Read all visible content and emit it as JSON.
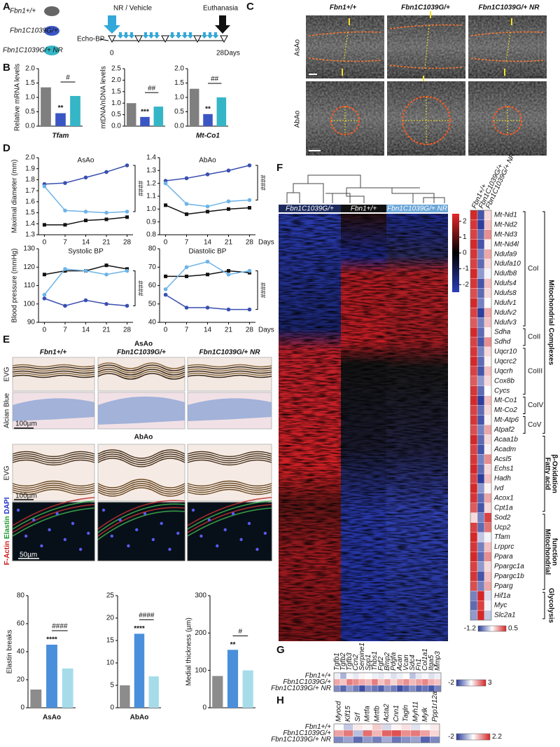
{
  "panel_labels": [
    "A",
    "B",
    "C",
    "D",
    "E",
    "F",
    "G",
    "H"
  ],
  "A": {
    "groups": [
      "Fbn1+/+",
      "Fbn1C1039G/+",
      "Fbn1C1039G/+ NR"
    ],
    "measure": "Echo-BP",
    "treatment": "NR / Vehicle",
    "endpoint": "Euthanasia",
    "start": "0",
    "end": "28Days"
  },
  "C": {
    "columns": [
      "Fbn1+/+",
      "Fbn1C1039G/+",
      "Fbn1C1039G/+ NR"
    ],
    "rows": [
      "AsAo",
      "AbAo"
    ]
  },
  "E": {
    "section_1": "AsAo",
    "columns": [
      "Fbn1+/+",
      "Fbn1C1039G/+",
      "Fbn1C1039G/+ NR"
    ],
    "rows_1": [
      "EVG",
      "Alcian Blue"
    ],
    "scale_1": "100µm",
    "section_2": "AbAo",
    "rows_2": [
      "EVG"
    ],
    "scale_2": "100µm",
    "stains": [
      "F-Actin",
      "Elastin",
      "DAPI"
    ],
    "scale_3": "50µm"
  },
  "F": {
    "subgroups": [
      "CoI",
      "CoII",
      "CoIII",
      "CoIV",
      "CoV"
    ],
    "categories": [
      [
        "Mitochondrial Complexes"
      ],
      [
        "Fatty acid",
        "β-Oxidation"
      ],
      [
        "Mitochondrial",
        "function"
      ],
      [
        "Glycolysis"
      ]
    ]
  },
  "chart_data": [
    {
      "type": "bar",
      "title": "Tfam",
      "ylabel": "Relative mRNA levels",
      "values": [
        1.35,
        0.45,
        1.05
      ],
      "colors": [
        "#7f7f7f",
        "#3a56c5",
        "#34b6c6"
      ],
      "ylim": [
        0,
        2
      ],
      "yticks": [
        {
          "value": 0,
          "label": "0.0"
        },
        0.5,
        {
          "value": 1,
          "label": "1.0"
        },
        1.5,
        {
          "value": 2,
          "label": "2.0"
        }
      ],
      "significance": {
        "vs_control": "**",
        "vs_treated": "#"
      }
    },
    {
      "type": "bar",
      "ylabel": "mtDNA/nDNA levels",
      "values": [
        1.0,
        0.4,
        0.85
      ],
      "colors": [
        "#7f7f7f",
        "#3a56c5",
        "#34b6c6"
      ],
      "ylim": [
        0,
        2.5
      ],
      "yticks": [
        {
          "value": 0,
          "label": "0.0"
        },
        0.5,
        {
          "value": 1,
          "label": "1.0"
        },
        1.5,
        {
          "value": 2,
          "label": "2.0"
        },
        2.5
      ],
      "significance": {
        "vs_control": "***",
        "vs_treated": "##"
      }
    },
    {
      "type": "bar",
      "title": "Mt-Co1",
      "values": [
        1.3,
        0.42,
        1.0
      ],
      "colors": [
        "#7f7f7f",
        "#3a56c5",
        "#34b6c6"
      ],
      "ylim": [
        0,
        2
      ],
      "yticks": [
        {
          "value": 0,
          "label": "0.0"
        },
        0.5,
        {
          "value": 1,
          "label": "1.0"
        },
        1.5,
        {
          "value": 2,
          "label": "2.0"
        }
      ],
      "significance": {
        "vs_control": "**",
        "vs_treated": "##"
      }
    },
    {
      "type": "line",
      "title": "AsAo",
      "ylabel": "Maximal diameter (mm)",
      "x": [
        0,
        7,
        14,
        21,
        28
      ],
      "xlim": [
        -2,
        30
      ],
      "xticks": [
        0,
        7,
        14,
        21,
        28
      ],
      "ylim": [
        1.3,
        2.0
      ],
      "yticks": [
        1.3,
        1.4,
        1.5,
        1.6,
        1.7,
        1.8,
        1.9,
        {
          "value": 2,
          "label": "2.0"
        }
      ],
      "series": [
        {
          "color": "#111111",
          "values": [
            1.39,
            1.39,
            1.43,
            1.44,
            1.46
          ]
        },
        {
          "color": "#3a4fb0",
          "values": [
            1.76,
            1.77,
            1.82,
            1.87,
            1.93
          ]
        },
        {
          "color": "#6db3e8",
          "values": [
            1.74,
            1.52,
            1.51,
            1.5,
            1.51
          ]
        }
      ],
      "significance": "####"
    },
    {
      "type": "line",
      "title": "AbAo",
      "xlabel": "Days",
      "x": [
        0,
        7,
        14,
        21,
        28
      ],
      "xlim": [
        -2,
        30
      ],
      "xticks": [
        0,
        7,
        14,
        21,
        28
      ],
      "ylim": [
        0.8,
        1.4
      ],
      "yticks": [
        0.8,
        0.9,
        {
          "value": 1,
          "label": "1.0"
        },
        1.1,
        1.2,
        1.3,
        1.4
      ],
      "series": [
        {
          "color": "#111111",
          "values": [
            1.03,
            0.96,
            0.98,
            1.0,
            1.01
          ]
        },
        {
          "color": "#3a4fb0",
          "values": [
            1.22,
            1.24,
            1.27,
            1.3,
            1.34
          ]
        },
        {
          "color": "#6db3e8",
          "values": [
            1.2,
            1.04,
            1.02,
            1.06,
            1.07
          ]
        }
      ],
      "significance": "####"
    },
    {
      "type": "line",
      "title": "Systolic BP",
      "ylabel": "Blood pressure (mmHg)",
      "x": [
        0,
        7,
        14,
        21,
        28
      ],
      "xlim": [
        -2,
        30
      ],
      "xticks": [
        0,
        7,
        14,
        21,
        28
      ],
      "ylim": [
        90,
        130
      ],
      "yticks": [
        90,
        100,
        110,
        120,
        130
      ],
      "series": [
        {
          "color": "#111111",
          "values": [
            116,
            118,
            118,
            121,
            119
          ]
        },
        {
          "color": "#3a4fb0",
          "values": [
            103,
            99,
            102,
            100,
            99
          ]
        },
        {
          "color": "#6db3e8",
          "values": [
            105,
            119,
            118,
            116,
            118
          ]
        }
      ],
      "significance": "####"
    },
    {
      "type": "line",
      "title": "Diastolic BP",
      "xlabel": "Days",
      "x": [
        0,
        7,
        14,
        21,
        28
      ],
      "xlim": [
        -2,
        30
      ],
      "xticks": [
        0,
        7,
        14,
        21,
        28
      ],
      "ylim": [
        40,
        80
      ],
      "yticks": [
        40,
        50,
        60,
        70,
        80
      ],
      "series": [
        {
          "color": "#111111",
          "values": [
            65,
            65,
            66,
            68,
            67
          ]
        },
        {
          "color": "#3a4fb0",
          "values": [
            55,
            48,
            48,
            47,
            47
          ]
        },
        {
          "color": "#6db3e8",
          "values": [
            58,
            70,
            73,
            66,
            68
          ]
        }
      ],
      "significance": "####"
    },
    {
      "type": "bar",
      "title": "AsAo",
      "ylabel": "Elastin breaks",
      "values": [
        13,
        45,
        28
      ],
      "colors": [
        "#8c8c8c",
        "#4a8fdb",
        "#a6dcea"
      ],
      "ylim": [
        0,
        80
      ],
      "yticks": [
        0,
        20,
        40,
        60,
        80
      ],
      "significance": {
        "vs_control": "****",
        "vs_treated": "####"
      }
    },
    {
      "type": "bar",
      "title": "AbAo",
      "values": [
        5,
        16.5,
        7
      ],
      "colors": [
        "#8c8c8c",
        "#4a8fdb",
        "#a6dcea"
      ],
      "ylim": [
        0,
        25
      ],
      "yticks": [
        0,
        5,
        10,
        15,
        20,
        25
      ],
      "significance": {
        "vs_control": "****",
        "vs_treated": "####"
      }
    },
    {
      "type": "bar",
      "ylabel": "Medial thickness (µm)",
      "values": [
        85,
        155,
        100
      ],
      "colors": [
        "#8c8c8c",
        "#4a8fdb",
        "#a6dcea"
      ],
      "ylim": [
        0,
        300
      ],
      "yticks": [
        0,
        100,
        200,
        300
      ],
      "significance": {
        "vs_control": "**",
        "vs_treated": "#"
      }
    },
    {
      "type": "clustered-heatmap",
      "columns": [
        "Fbn1C1039G/+",
        "Fbn1+/+",
        "Fbn1C1039G/+ NR"
      ],
      "zticks": [
        2,
        1,
        0,
        -1,
        -2
      ],
      "colors": [
        "#2b3fb8",
        "#000000",
        "#e8282b"
      ]
    },
    {
      "type": "heatmap",
      "columns": [
        "Fbn1+/+",
        "Fbn1C1039G/+",
        "Fbn1C1039G/+ NR"
      ],
      "rows": [
        "Mt-Nd1",
        "Mt-Nd2",
        "Mt-Nd3",
        "Mt-Nd4l",
        "Ndufa9",
        "Ndufa10",
        "Ndufb8",
        "Ndufs4",
        "Ndufs8",
        "Ndufv1",
        "Ndufv2",
        "Ndufv3",
        "Sdha",
        "Sdhd",
        "Uqcr10",
        "Uqcrc2",
        "Uqcrh",
        "Cox8b",
        "Cycs",
        "Mt-Co1",
        "Mt-Co2",
        "Mt-Atp6",
        "Atpaf2",
        "Acaa1b",
        "Acadm",
        "Acsl5",
        "Echs1",
        "Hadh",
        "Ivd",
        "Acox1",
        "Cpt1a",
        "Sod2",
        "Ucp2",
        "Tfam",
        "Lrpprc",
        "Ppara",
        "Ppargc1a",
        "Ppargc1b",
        "Pparg",
        "Hif1a",
        "Myc",
        "Slc2a1"
      ],
      "values": [
        [
          0.5,
          -1.1,
          -0.2
        ],
        [
          0.45,
          -1.2,
          -0.1
        ],
        [
          0.4,
          -1.0,
          0.1
        ],
        [
          0.5,
          -1.1,
          -0.3
        ],
        [
          0.45,
          -0.9,
          0.0
        ],
        [
          0.4,
          -1.0,
          -0.2
        ],
        [
          0.5,
          -0.8,
          -0.4
        ],
        [
          0.45,
          -1.1,
          -0.1
        ],
        [
          0.35,
          -1.0,
          -0.2
        ],
        [
          0.5,
          -0.9,
          -0.35
        ],
        [
          0.4,
          -1.2,
          0.0
        ],
        [
          0.3,
          -0.9,
          -0.1
        ],
        [
          0.5,
          -1.0,
          -0.3
        ],
        [
          0.4,
          -1.1,
          0.1
        ],
        [
          0.45,
          -0.9,
          -0.2
        ],
        [
          0.5,
          -1.0,
          -0.3
        ],
        [
          0.4,
          -1.1,
          -0.1
        ],
        [
          0.3,
          -0.8,
          -0.2
        ],
        [
          0.45,
          -1.0,
          -0.35
        ],
        [
          0.5,
          -1.2,
          -0.1
        ],
        [
          0.4,
          -1.0,
          -0.2
        ],
        [
          0.45,
          -1.1,
          -0.3
        ],
        [
          0.35,
          -0.9,
          0.0
        ],
        [
          0.5,
          -1.0,
          -0.2
        ],
        [
          0.4,
          -1.1,
          -0.3
        ],
        [
          0.45,
          -0.9,
          0.1
        ],
        [
          0.5,
          -1.0,
          -0.2
        ],
        [
          0.4,
          -1.2,
          -0.1
        ],
        [
          0.5,
          -0.8,
          -0.3
        ],
        [
          0.45,
          -1.0,
          0.0
        ],
        [
          0.3,
          -1.1,
          -0.2
        ],
        [
          -0.2,
          -0.9,
          0.4
        ],
        [
          0.4,
          -1.0,
          0.2
        ],
        [
          0.5,
          -0.6,
          -0.4
        ],
        [
          0.45,
          -0.9,
          -0.1
        ],
        [
          0.5,
          -1.0,
          0.1
        ],
        [
          0.4,
          -0.8,
          -0.2
        ],
        [
          0.45,
          -1.1,
          -0.1
        ],
        [
          0.35,
          -0.9,
          0.0
        ],
        [
          -0.9,
          0.5,
          -0.5
        ],
        [
          -1.0,
          0.4,
          -0.4
        ],
        [
          -0.8,
          0.5,
          -0.6
        ]
      ],
      "zlim": [
        -1.2,
        0.5
      ],
      "colors": [
        "#2c3e9c",
        "#ffffff",
        "#d62728"
      ]
    },
    {
      "type": "heatmap",
      "rows": [
        "Fbn1+/+",
        "Fbn1C1039G/+",
        "Fbn1C1039G/+ NR"
      ],
      "columns": [
        "Tgfb1",
        "Tgfb2",
        "Tgfb3",
        "Ccn2",
        "Serpine1",
        "Spp1",
        "Thbs1",
        "Fgf2",
        "Bmp2",
        "Pdgfa",
        "Acan",
        "Vcan",
        "Sdc4",
        "Fn1",
        "Col1a1",
        "Itga5",
        "Mmp3"
      ],
      "values": [
        [
          0.3,
          -0.5,
          0.4,
          0.2,
          0.6,
          0.5,
          0.3,
          0.2,
          0.4,
          0.1,
          0.3,
          0.5,
          -0.3,
          0.2,
          0.4,
          0.1,
          0.3
        ],
        [
          1.5,
          1.2,
          2.0,
          1.8,
          1.5,
          1.3,
          2.0,
          1.2,
          1.6,
          1.0,
          1.5,
          1.8,
          1.3,
          1.6,
          1.9,
          1.4,
          1.2
        ],
        [
          -1.0,
          -1.5,
          -0.8,
          -1.2,
          -1.8,
          -1.0,
          -1.3,
          -1.6,
          -0.9,
          -1.2,
          -1.8,
          -1.4,
          -1.0,
          -1.5,
          -1.3,
          -1.7,
          -1.1
        ]
      ],
      "zlim": [
        -2,
        3
      ],
      "colors": [
        "#2c3e9c",
        "#ffffff",
        "#d62728"
      ]
    },
    {
      "type": "heatmap",
      "rows": [
        "Fbn1+/+",
        "Fbn1C1039G/+",
        "Fbn1C1039G/+ NR"
      ],
      "columns": [
        "Myocd",
        "Klf15",
        "Srf",
        "Mrtfa",
        "Mrtfb",
        "Acta2",
        "Cnn1",
        "Tagln",
        "Myh11",
        "Mylk",
        "Ppp1r12a"
      ],
      "values": [
        [
          0.1,
          -0.5,
          0.3,
          0.2,
          0.6,
          -0.3,
          0.2,
          0.4,
          -0.2,
          0.1,
          0.3
        ],
        [
          1.0,
          1.4,
          -0.6,
          1.5,
          0.8,
          1.6,
          1.8,
          1.2,
          1.4,
          1.0,
          0.5
        ],
        [
          -1.2,
          -0.9,
          -1.5,
          -1.0,
          -1.3,
          -0.8,
          -1.4,
          -1.1,
          -0.9,
          -1.6,
          -1.2
        ]
      ],
      "zlim": [
        -2,
        2.2
      ],
      "colors": [
        "#2c3e9c",
        "#ffffff",
        "#d62728"
      ]
    }
  ]
}
